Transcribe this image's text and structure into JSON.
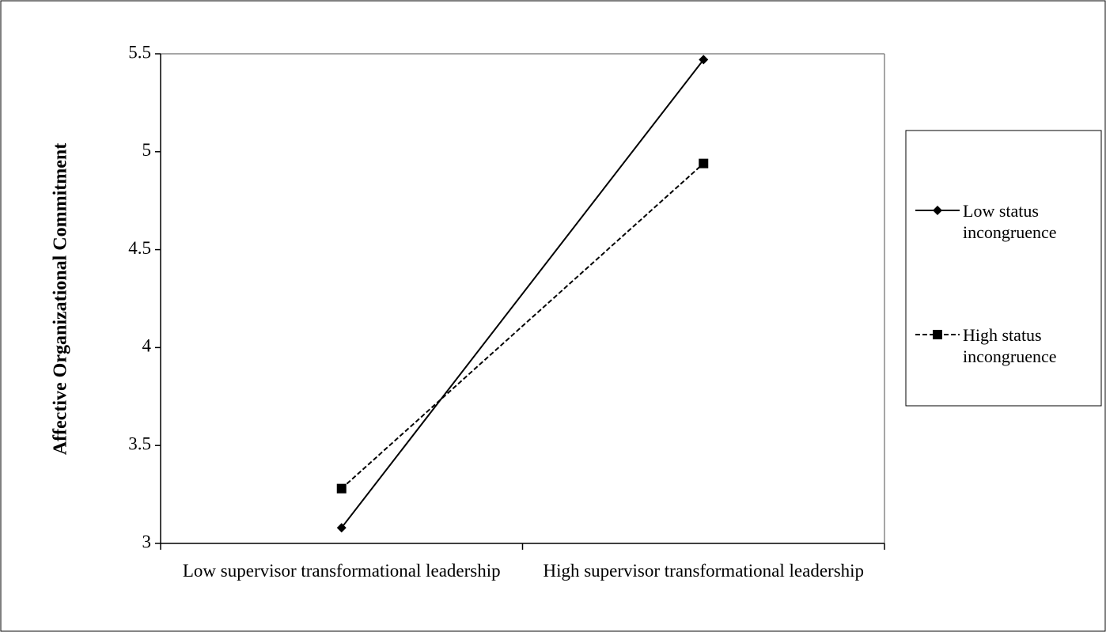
{
  "chart_data": {
    "type": "line",
    "y_label": "Affective Organizational Commitment",
    "categories": [
      "Low supervisor transformational leadership",
      "High supervisor transformational leadership"
    ],
    "series": [
      {
        "name": "Low status incongruence",
        "color": "#000000",
        "style": "solid",
        "marker": "diamond",
        "values": [
          3.08,
          5.47
        ]
      },
      {
        "name": "High status incongruence",
        "color": "#000000",
        "style": "dashed",
        "marker": "square",
        "values": [
          3.28,
          4.94
        ]
      }
    ],
    "ylim": [
      3,
      5.5
    ],
    "yticks": [
      3,
      3.5,
      4,
      4.5,
      5,
      5.5
    ],
    "legend": "right"
  }
}
